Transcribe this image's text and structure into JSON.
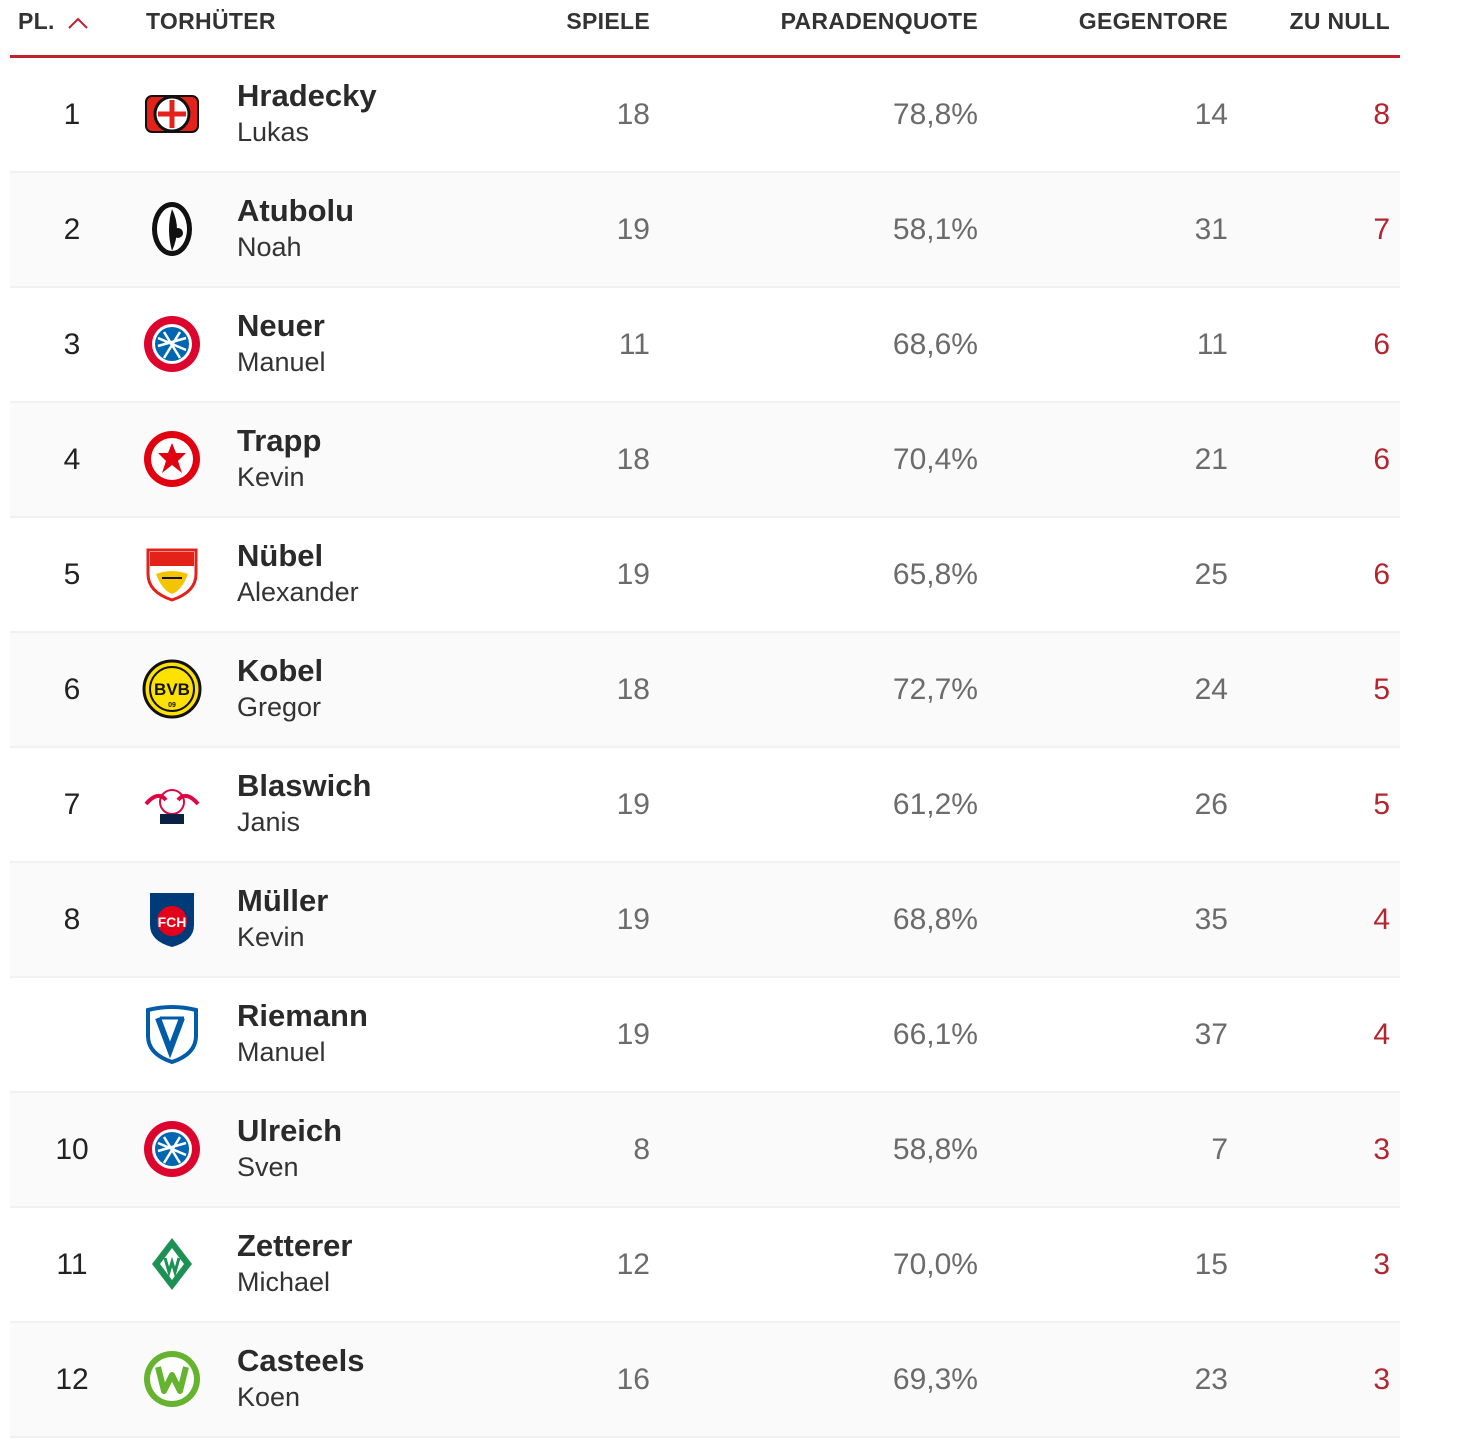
{
  "header": {
    "rank": "PL.",
    "keeper": "TORHÜTER",
    "games": "SPIELE",
    "save_rate": "PARADENQUOTE",
    "goals_against": "GEGENTORE",
    "clean_sheets": "ZU NULL"
  },
  "rows": [
    {
      "rank": "1",
      "last": "Hradecky",
      "first": "Lukas",
      "games": "18",
      "save_rate": "78,8%",
      "goals_against": "14",
      "clean_sheets": "8"
    },
    {
      "rank": "2",
      "last": "Atubolu",
      "first": "Noah",
      "games": "19",
      "save_rate": "58,1%",
      "goals_against": "31",
      "clean_sheets": "7"
    },
    {
      "rank": "3",
      "last": "Neuer",
      "first": "Manuel",
      "games": "11",
      "save_rate": "68,6%",
      "goals_against": "11",
      "clean_sheets": "6"
    },
    {
      "rank": "4",
      "last": "Trapp",
      "first": "Kevin",
      "games": "18",
      "save_rate": "70,4%",
      "goals_against": "21",
      "clean_sheets": "6"
    },
    {
      "rank": "5",
      "last": "Nübel",
      "first": "Alexander",
      "games": "19",
      "save_rate": "65,8%",
      "goals_against": "25",
      "clean_sheets": "6"
    },
    {
      "rank": "6",
      "last": "Kobel",
      "first": "Gregor",
      "games": "18",
      "save_rate": "72,7%",
      "goals_against": "24",
      "clean_sheets": "5"
    },
    {
      "rank": "7",
      "last": "Blaswich",
      "first": "Janis",
      "games": "19",
      "save_rate": "61,2%",
      "goals_against": "26",
      "clean_sheets": "5"
    },
    {
      "rank": "8",
      "last": "Müller",
      "first": "Kevin",
      "games": "19",
      "save_rate": "68,8%",
      "goals_against": "35",
      "clean_sheets": "4"
    },
    {
      "rank": "",
      "last": "Riemann",
      "first": "Manuel",
      "games": "19",
      "save_rate": "66,1%",
      "goals_against": "37",
      "clean_sheets": "4"
    },
    {
      "rank": "10",
      "last": "Ulreich",
      "first": "Sven",
      "games": "8",
      "save_rate": "58,8%",
      "goals_against": "7",
      "clean_sheets": "3"
    },
    {
      "rank": "11",
      "last": "Zetterer",
      "first": "Michael",
      "games": "12",
      "save_rate": "70,0%",
      "goals_against": "15",
      "clean_sheets": "3"
    },
    {
      "rank": "12",
      "last": "Casteels",
      "first": "Koen",
      "games": "16",
      "save_rate": "69,3%",
      "goals_against": "23",
      "clean_sheets": "3"
    }
  ],
  "logo_icons": [
    "leverkusen-logo-icon",
    "freiburg-logo-icon",
    "bayern-logo-icon",
    "frankfurt-logo-icon",
    "stuttgart-logo-icon",
    "dortmund-logo-icon",
    "leipzig-logo-icon",
    "heidenheim-logo-icon",
    "bochum-logo-icon",
    "bayern-logo-icon",
    "bremen-logo-icon",
    "wolfsburg-logo-icon"
  ],
  "colors": {
    "accent": "#c0222c",
    "clean_sheets": "#b3262f",
    "value_gray": "#6b6b6b"
  }
}
